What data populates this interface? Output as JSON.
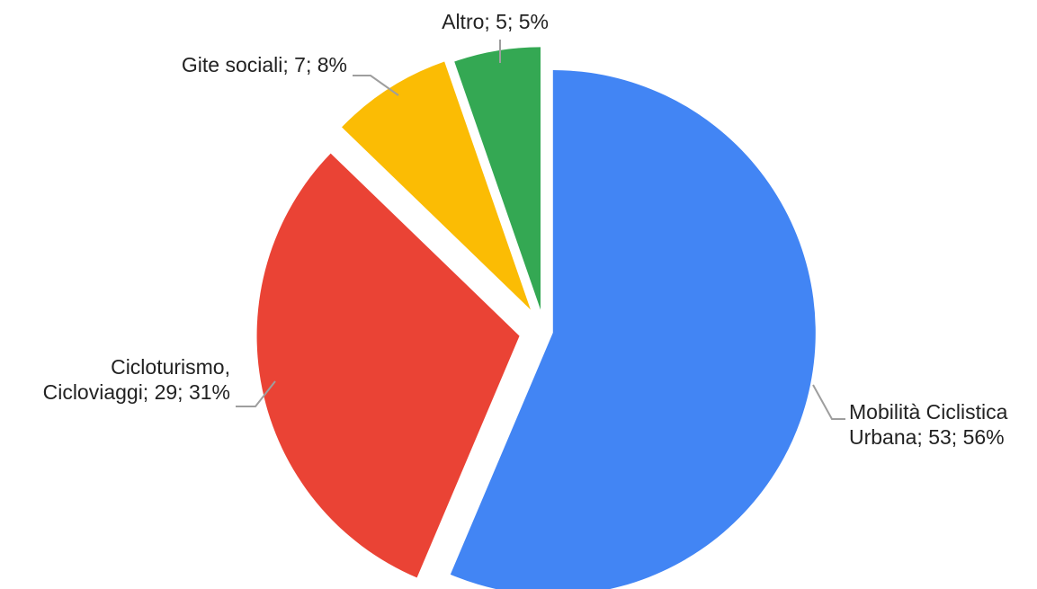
{
  "chart_data": {
    "type": "pie",
    "title": "",
    "slices": [
      {
        "name": "Mobilità Ciclistica Urbana",
        "value": 53,
        "percent": 56,
        "color": "#4285F4",
        "label_lines": [
          "Mobilità Ciclistica",
          "Urbana;  53; 56%"
        ]
      },
      {
        "name": "Cicloturismo, Cicloviaggi",
        "value": 29,
        "percent": 31,
        "color": "#EA4335",
        "label_lines": [
          "Cicloturismo,",
          "Cicloviaggi; 29; 31%"
        ]
      },
      {
        "name": "Gite sociali",
        "value": 7,
        "percent": 8,
        "color": "#FBBC04",
        "label_lines": [
          "Gite sociali; 7; 8%"
        ]
      },
      {
        "name": "Altro",
        "value": 5,
        "percent": 5,
        "color": "#34A853",
        "label_lines": [
          "Altro; 5; 5%"
        ]
      }
    ]
  }
}
